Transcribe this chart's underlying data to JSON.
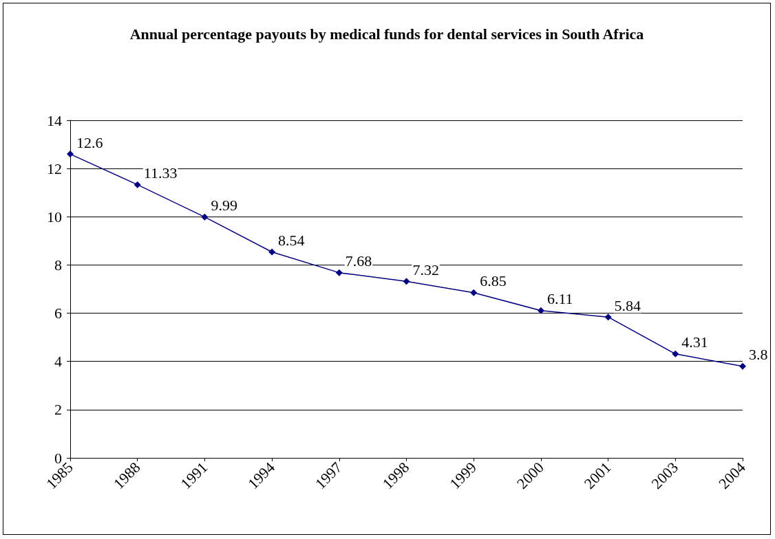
{
  "chart_data": {
    "type": "line",
    "title": "Annual percentage payouts by medical funds for dental services in South Africa",
    "categories": [
      "1985",
      "1988",
      "1991",
      "1994",
      "1997",
      "1998",
      "1999",
      "2000",
      "2001",
      "2003",
      "2004"
    ],
    "values": [
      12.6,
      11.33,
      9.99,
      8.54,
      7.68,
      7.32,
      6.85,
      6.11,
      5.84,
      4.31,
      3.8
    ],
    "color": "#000080",
    "marker": "diamond",
    "data_labels": true,
    "line_style": "solid",
    "ylim": [
      0,
      14
    ],
    "yticks": [
      0,
      2,
      4,
      6,
      8,
      10,
      12,
      14
    ],
    "grid": "y"
  }
}
